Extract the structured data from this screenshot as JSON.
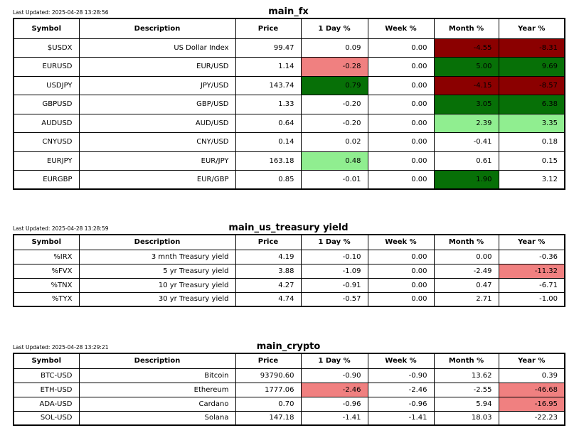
{
  "palette": {
    "strong_down": "#8b0000",
    "strong_up": "#077007",
    "mild_up": "#90ee90",
    "mild_down": "#f08080"
  },
  "chart_data": [
    {
      "type": "table",
      "title": "main_fx",
      "last_updated": "Last Updated: 2025-04-28 13:28:56",
      "columns": [
        "Symbol",
        "Description",
        "Price",
        "1 Day %",
        "Week %",
        "Month %",
        "Year %"
      ],
      "rows": [
        {
          "cells": [
            "$USDX",
            "US Dollar Index",
            "99.47",
            "0.09",
            "0.00",
            "-4.55",
            "-8.31"
          ],
          "bg": [
            "",
            "",
            "",
            "",
            "",
            "strong_down",
            "strong_down"
          ]
        },
        {
          "cells": [
            "EURUSD",
            "EUR/USD",
            "1.14",
            "-0.28",
            "0.00",
            "5.00",
            "9.69"
          ],
          "bg": [
            "",
            "",
            "",
            "mild_down",
            "",
            "strong_up",
            "strong_up"
          ]
        },
        {
          "cells": [
            "USDJPY",
            "JPY/USD",
            "143.74",
            "0.79",
            "0.00",
            "-4.15",
            "-8.57"
          ],
          "bg": [
            "",
            "",
            "",
            "strong_up",
            "",
            "strong_down",
            "strong_down"
          ]
        },
        {
          "cells": [
            "GBPUSD",
            "GBP/USD",
            "1.33",
            "-0.20",
            "0.00",
            "3.05",
            "6.38"
          ],
          "bg": [
            "",
            "",
            "",
            "",
            "",
            "strong_up",
            "strong_up"
          ]
        },
        {
          "cells": [
            "AUDUSD",
            "AUD/USD",
            "0.64",
            "-0.20",
            "0.00",
            "2.39",
            "3.35"
          ],
          "bg": [
            "",
            "",
            "",
            "",
            "",
            "mild_up",
            "mild_up"
          ]
        },
        {
          "cells": [
            "CNYUSD",
            "CNY/USD",
            "0.14",
            "0.02",
            "0.00",
            "-0.41",
            "0.18"
          ],
          "bg": [
            "",
            "",
            "",
            "",
            "",
            "",
            ""
          ]
        },
        {
          "cells": [
            "EURJPY",
            "EUR/JPY",
            "163.18",
            "0.48",
            "0.00",
            "0.61",
            "0.15"
          ],
          "bg": [
            "",
            "",
            "",
            "mild_up",
            "",
            "",
            ""
          ]
        },
        {
          "cells": [
            "EURGBP",
            "EUR/GBP",
            "0.85",
            "-0.01",
            "0.00",
            "1.90",
            "3.12"
          ],
          "bg": [
            "",
            "",
            "",
            "",
            "",
            "strong_up",
            ""
          ]
        }
      ]
    },
    {
      "type": "table",
      "title": "main_us_treasury yield",
      "last_updated": "Last Updated: 2025-04-28 13:28:59",
      "columns": [
        "Symbol",
        "Description",
        "Price",
        "1 Day %",
        "Week %",
        "Month %",
        "Year %"
      ],
      "rows": [
        {
          "cells": [
            "%IRX",
            "3 mnth Treasury yield",
            "4.19",
            "-0.10",
            "0.00",
            "0.00",
            "-0.36"
          ],
          "bg": [
            "",
            "",
            "",
            "",
            "",
            "",
            ""
          ]
        },
        {
          "cells": [
            "%FVX",
            "5 yr Treasury yield",
            "3.88",
            "-1.09",
            "0.00",
            "-2.49",
            "-11.32"
          ],
          "bg": [
            "",
            "",
            "",
            "",
            "",
            "",
            "mild_down"
          ]
        },
        {
          "cells": [
            "%TNX",
            "10 yr Treasury yield",
            "4.27",
            "-0.91",
            "0.00",
            "0.47",
            "-6.71"
          ],
          "bg": [
            "",
            "",
            "",
            "",
            "",
            "",
            ""
          ]
        },
        {
          "cells": [
            "%TYX",
            "30 yr Treasury yield",
            "4.74",
            "-0.57",
            "0.00",
            "2.71",
            "-1.00"
          ],
          "bg": [
            "",
            "",
            "",
            "",
            "",
            "",
            ""
          ]
        }
      ]
    },
    {
      "type": "table",
      "title": "main_crypto",
      "last_updated": "Last Updated: 2025-04-28 13:29:21",
      "columns": [
        "Symbol",
        "Description",
        "Price",
        "1 Day %",
        "Week %",
        "Month %",
        "Year %"
      ],
      "rows": [
        {
          "cells": [
            "BTC-USD",
            "Bitcoin",
            "93790.60",
            "-0.90",
            "-0.90",
            "13.62",
            "0.39"
          ],
          "bg": [
            "",
            "",
            "",
            "",
            "",
            "",
            ""
          ]
        },
        {
          "cells": [
            "ETH-USD",
            "Ethereum",
            "1777.06",
            "-2.46",
            "-2.46",
            "-2.55",
            "-46.68"
          ],
          "bg": [
            "",
            "",
            "",
            "mild_down",
            "",
            "",
            "mild_down"
          ]
        },
        {
          "cells": [
            "ADA-USD",
            "Cardano",
            "0.70",
            "-0.96",
            "-0.96",
            "5.94",
            "-16.95"
          ],
          "bg": [
            "",
            "",
            "",
            "",
            "",
            "",
            "mild_down"
          ]
        },
        {
          "cells": [
            "SOL-USD",
            "Solana",
            "147.18",
            "-1.41",
            "-1.41",
            "18.03",
            "-22.23"
          ],
          "bg": [
            "",
            "",
            "",
            "",
            "",
            "",
            ""
          ]
        }
      ]
    }
  ]
}
